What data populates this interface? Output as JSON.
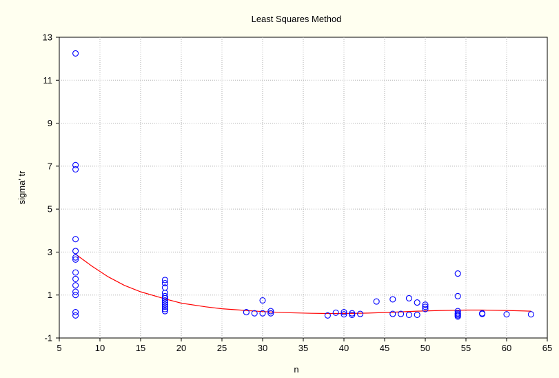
{
  "chart_data": {
    "type": "scatter",
    "title": "Least Squares Method",
    "xlabel": "n",
    "ylabel": "sigma' tr",
    "xlim": [
      5,
      65
    ],
    "ylim": [
      -1,
      13
    ],
    "x_ticks": [
      5,
      10,
      15,
      20,
      25,
      30,
      35,
      40,
      45,
      50,
      55,
      60,
      65
    ],
    "y_ticks": [
      -1,
      1,
      3,
      5,
      7,
      9,
      11,
      13
    ],
    "grid": true,
    "colors": {
      "points": "#0000ff",
      "fit_line": "#ff0000",
      "plot_bg": "#ffffff",
      "figure_bg": "#fffff0",
      "grid": "#b0b0b0"
    },
    "series": [
      {
        "marker": "circle-open",
        "points": [
          [
            7,
            12.25
          ],
          [
            7,
            7.05
          ],
          [
            7,
            6.85
          ],
          [
            7,
            3.6
          ],
          [
            7,
            3.05
          ],
          [
            7,
            2.75
          ],
          [
            7,
            2.65
          ],
          [
            7,
            2.05
          ],
          [
            7,
            1.75
          ],
          [
            7,
            1.45
          ],
          [
            7,
            1.15
          ],
          [
            7,
            1.0
          ],
          [
            7,
            0.2
          ],
          [
            7,
            0.05
          ],
          [
            18,
            1.7
          ],
          [
            18,
            1.55
          ],
          [
            18,
            1.35
          ],
          [
            18,
            1.1
          ],
          [
            18,
            0.95
          ],
          [
            18,
            0.85
          ],
          [
            18,
            0.75
          ],
          [
            18,
            0.65
          ],
          [
            18,
            0.55
          ],
          [
            18,
            0.45
          ],
          [
            18,
            0.35
          ],
          [
            18,
            0.25
          ],
          [
            28,
            0.2
          ],
          [
            29,
            0.15
          ],
          [
            30,
            0.75
          ],
          [
            30,
            0.15
          ],
          [
            31,
            0.25
          ],
          [
            31,
            0.15
          ],
          [
            38,
            0.05
          ],
          [
            39,
            0.18
          ],
          [
            40,
            0.2
          ],
          [
            40,
            0.1
          ],
          [
            41,
            0.15
          ],
          [
            41,
            0.08
          ],
          [
            42,
            0.12
          ],
          [
            44,
            0.7
          ],
          [
            46,
            0.8
          ],
          [
            46,
            0.12
          ],
          [
            47,
            0.12
          ],
          [
            48,
            0.85
          ],
          [
            48,
            0.08
          ],
          [
            49,
            0.65
          ],
          [
            49,
            0.08
          ],
          [
            50,
            0.55
          ],
          [
            50,
            0.45
          ],
          [
            50,
            0.35
          ],
          [
            54,
            2.0
          ],
          [
            54,
            0.95
          ],
          [
            54,
            0.25
          ],
          [
            54,
            0.15
          ],
          [
            54,
            0.1
          ],
          [
            54,
            0.05
          ],
          [
            54,
            0.0
          ],
          [
            57,
            0.15
          ],
          [
            57,
            0.12
          ],
          [
            60,
            0.1
          ],
          [
            63,
            0.1
          ]
        ]
      },
      {
        "type": "line",
        "points": [
          [
            7,
            2.9
          ],
          [
            9,
            2.35
          ],
          [
            11,
            1.85
          ],
          [
            13,
            1.45
          ],
          [
            15,
            1.15
          ],
          [
            18,
            0.82
          ],
          [
            20,
            0.62
          ],
          [
            23,
            0.45
          ],
          [
            25,
            0.36
          ],
          [
            28,
            0.28
          ],
          [
            30,
            0.23
          ],
          [
            33,
            0.18
          ],
          [
            36,
            0.15
          ],
          [
            38,
            0.14
          ],
          [
            40,
            0.14
          ],
          [
            43,
            0.16
          ],
          [
            46,
            0.2
          ],
          [
            49,
            0.25
          ],
          [
            52,
            0.28
          ],
          [
            55,
            0.3
          ],
          [
            57,
            0.3
          ],
          [
            60,
            0.28
          ],
          [
            63,
            0.25
          ]
        ]
      }
    ]
  }
}
